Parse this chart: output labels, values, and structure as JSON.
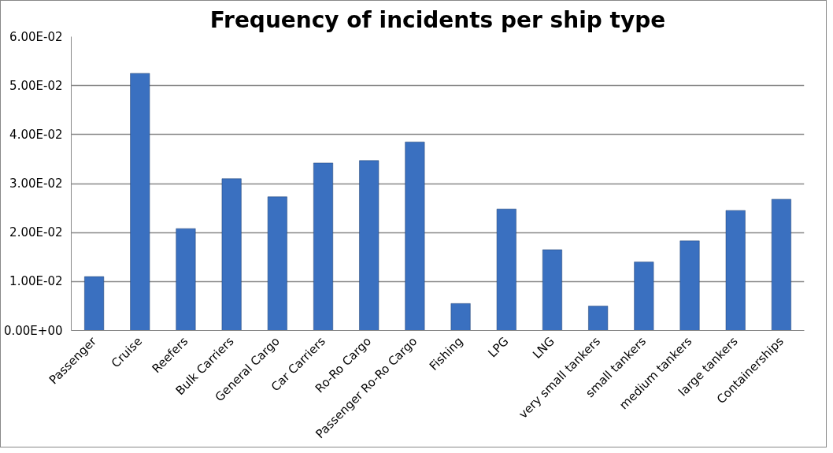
{
  "chart_data": {
    "type": "bar",
    "title": "Frequency of incidents per ship type",
    "categories": [
      "Passenger",
      "Cruise",
      "Reefers",
      "Bulk Carriers",
      "General Cargo",
      "Car Carriers",
      "Ro-Ro Cargo",
      "Passenger Ro-Ro Cargo",
      "Fishing",
      "LPG",
      "LNG",
      "very small tankers",
      "small tankers",
      "medium tankers",
      "large tankers",
      "Containerships"
    ],
    "values": [
      0.011,
      0.0525,
      0.0208,
      0.031,
      0.0273,
      0.0342,
      0.0347,
      0.0385,
      0.0055,
      0.0248,
      0.0165,
      0.005,
      0.014,
      0.0183,
      0.0245,
      0.0268
    ],
    "color": "#3a70c0",
    "ylim": [
      0,
      0.06
    ],
    "yticks": [
      {
        "value": 0,
        "label": "0.00E+00"
      },
      {
        "value": 0.01,
        "label": "1.00E-02"
      },
      {
        "value": 0.02,
        "label": "2.00E-02"
      },
      {
        "value": 0.03,
        "label": "3.00E-02"
      },
      {
        "value": 0.04,
        "label": "4.00E-02"
      },
      {
        "value": 0.05,
        "label": "5.00E-02"
      },
      {
        "value": 0.06,
        "label": "6.00E-02"
      }
    ],
    "grid": "y"
  }
}
